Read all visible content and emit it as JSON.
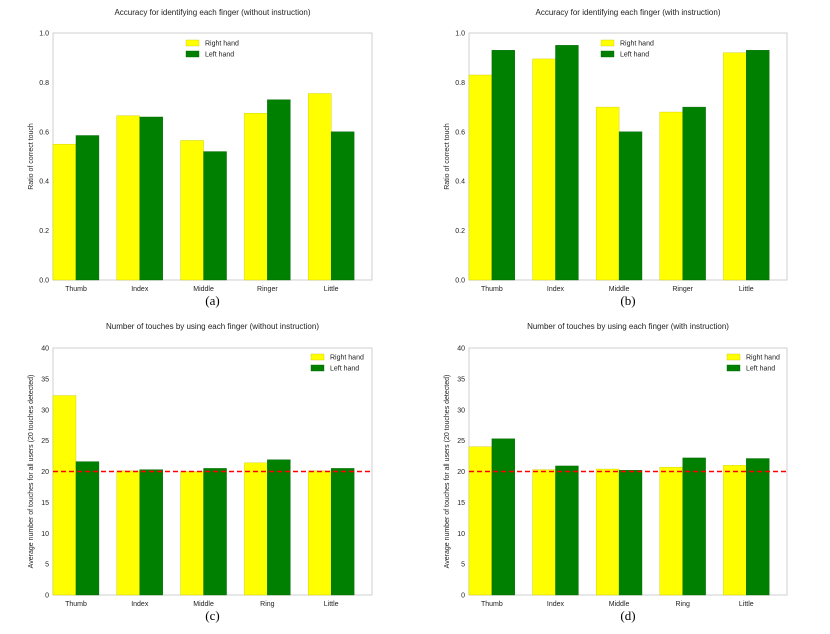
{
  "chart_data": [
    {
      "type": "bar",
      "title": "Accuracy for identifying each finger (without instruction)",
      "ylabel": "Ratio of correct touch",
      "categories": [
        "Thumb",
        "Index",
        "Middle",
        "Ringer",
        "Little"
      ],
      "series": [
        {
          "name": "Right hand",
          "color": "#ffff00",
          "values": [
            0.55,
            0.665,
            0.565,
            0.675,
            0.755
          ]
        },
        {
          "name": "Left hand",
          "color": "#008000",
          "values": [
            0.585,
            0.66,
            0.52,
            0.73,
            0.6
          ]
        }
      ],
      "ylim": [
        0,
        1.0
      ],
      "yticks": [
        "0.0",
        "0.2",
        "0.4",
        "0.6",
        "0.8",
        "1.0"
      ],
      "caption": "(a)",
      "legend": "top-center"
    },
    {
      "type": "bar",
      "title": "Accuracy for identifying each finger (with instruction)",
      "ylabel": "Ratio of correct touch",
      "categories": [
        "Thumb",
        "Index",
        "Middle",
        "Ringer",
        "Little"
      ],
      "series": [
        {
          "name": "Right hand",
          "color": "#ffff00",
          "values": [
            0.83,
            0.895,
            0.7,
            0.68,
            0.92
          ]
        },
        {
          "name": "Left hand",
          "color": "#008000",
          "values": [
            0.93,
            0.95,
            0.6,
            0.7,
            0.93
          ]
        }
      ],
      "ylim": [
        0,
        1.0
      ],
      "yticks": [
        "0.0",
        "0.2",
        "0.4",
        "0.6",
        "0.8",
        "1.0"
      ],
      "caption": "(b)",
      "legend": "top-center"
    },
    {
      "type": "bar",
      "title": "Number of touches by using each finger (without instruction)",
      "ylabel": "Average number of touches for all users (20 touches detected)",
      "categories": [
        "Thumb",
        "Index",
        "Middle",
        "Ring",
        "Little"
      ],
      "series": [
        {
          "name": "Right hand",
          "color": "#ffff00",
          "values": [
            32.3,
            20.1,
            20.0,
            21.4,
            20.1
          ]
        },
        {
          "name": "Left hand",
          "color": "#008000",
          "values": [
            21.6,
            20.3,
            20.5,
            21.9,
            20.5
          ]
        }
      ],
      "reference_line": {
        "y": 20,
        "color": "#ff0000",
        "style": "dashed"
      },
      "ylim": [
        0,
        40
      ],
      "yticks": [
        "0",
        "5",
        "10",
        "15",
        "20",
        "25",
        "30",
        "35",
        "40"
      ],
      "caption": "(c)",
      "legend": "top-right"
    },
    {
      "type": "bar",
      "title": "Number of touches by using each finger (with instruction)",
      "ylabel": "Average number of touches for all users (20 touches detected)",
      "categories": [
        "Thumb",
        "Index",
        "Middle",
        "Ring",
        "Little"
      ],
      "series": [
        {
          "name": "Right hand",
          "color": "#ffff00",
          "values": [
            24.0,
            20.3,
            20.4,
            20.7,
            21.0
          ]
        },
        {
          "name": "Left hand",
          "color": "#008000",
          "values": [
            25.3,
            20.9,
            20.2,
            22.2,
            22.1
          ]
        }
      ],
      "reference_line": {
        "y": 20,
        "color": "#ff0000",
        "style": "dashed"
      },
      "ylim": [
        0,
        40
      ],
      "yticks": [
        "0",
        "5",
        "10",
        "15",
        "20",
        "25",
        "30",
        "35",
        "40"
      ],
      "caption": "(d)",
      "legend": "top-right"
    }
  ]
}
